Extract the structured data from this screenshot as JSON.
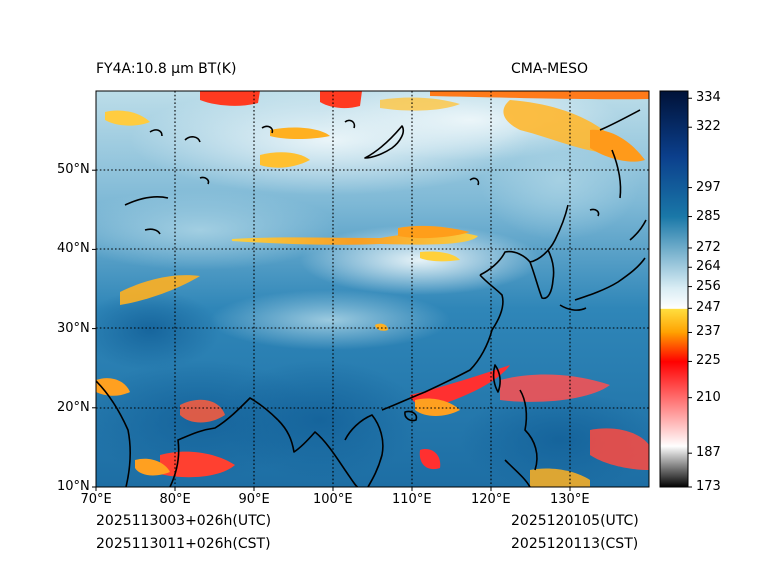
{
  "header": {
    "product": "FY4A:10.8 µm BT(K)",
    "model": "CMA-MESO"
  },
  "footer": {
    "init_utc": "2025113003+026h(UTC)",
    "init_cst": "2025113011+026h(CST)",
    "valid_utc": "2025120105(UTC)",
    "valid_cst": "2025120113(CST)"
  },
  "map": {
    "lon_range": [
      70,
      140
    ],
    "lat_range": [
      10,
      60
    ],
    "lon_ticks": [
      70,
      80,
      90,
      100,
      110,
      120,
      130
    ],
    "lon_labels": [
      "70°E",
      "80°E",
      "90°E",
      "100°E",
      "110°E",
      "120°E",
      "130°E"
    ],
    "lat_ticks": [
      10,
      20,
      30,
      40,
      50
    ],
    "lat_labels": [
      "10°N",
      "20°N",
      "30°N",
      "40°N",
      "50°N"
    ],
    "grid_style": "dotted"
  },
  "colorbar": {
    "range": [
      173,
      337
    ],
    "ticks": [
      173,
      187,
      210,
      225,
      237,
      247,
      256,
      264,
      272,
      285,
      297,
      322,
      334
    ],
    "tick_labels": [
      "173",
      "187",
      "210",
      "225",
      "237",
      "247",
      "256",
      "264",
      "272",
      "285",
      "297",
      "322",
      "334"
    ],
    "segments": [
      {
        "from": 173,
        "to": 190,
        "colors": [
          "#000000",
          "#ffffff"
        ]
      },
      {
        "from": 190,
        "to": 225,
        "colors": [
          "#ffffff",
          "#ff0000"
        ]
      },
      {
        "from": 225,
        "to": 237,
        "colors": [
          "#ff0000",
          "#ffa000"
        ]
      },
      {
        "from": 237,
        "to": 247,
        "colors": [
          "#ffa000",
          "#ffe040"
        ]
      },
      {
        "from": 247,
        "to": 256,
        "colors": [
          "#ffffff",
          "#d6ebf3"
        ]
      },
      {
        "from": 256,
        "to": 285,
        "colors": [
          "#d6ebf3",
          "#1a78a8"
        ]
      },
      {
        "from": 285,
        "to": 310,
        "colors": [
          "#1a78a8",
          "#0b3f8c"
        ]
      },
      {
        "from": 310,
        "to": 337,
        "colors": [
          "#0b3f8c",
          "#001238"
        ]
      }
    ]
  },
  "colors": {
    "ocean_warm": "#1b6fa6",
    "land_mid": "#4a95bf",
    "cloud_cold": "#d9eef5",
    "convective_red": "#ff2020",
    "cirrus_orange": "#ffa41e",
    "coastline": "#000000"
  }
}
